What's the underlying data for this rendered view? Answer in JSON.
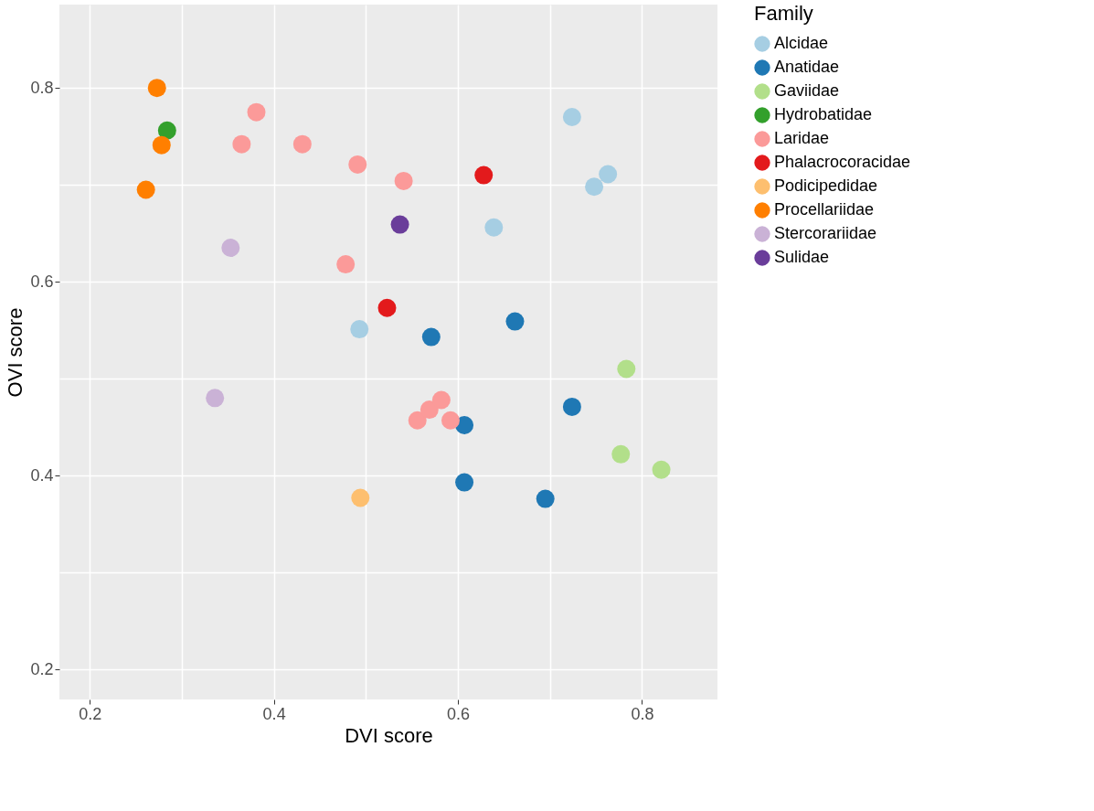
{
  "chart_data": {
    "type": "scatter",
    "xlabel": "DVI score",
    "ylabel": "OVI score",
    "legend_title": "Family",
    "legend": "right",
    "grid": true,
    "marker": "circle",
    "xlim": [
      0.167,
      0.882
    ],
    "ylim": [
      0.169,
      0.886
    ],
    "xticks": [
      0.2,
      {
        "value": 0.3,
        "label": null
      },
      0.4,
      {
        "value": 0.5,
        "label": null
      },
      0.6,
      {
        "value": 0.7,
        "label": null
      },
      0.8
    ],
    "yticks": [
      0.2,
      {
        "value": 0.3,
        "label": null
      },
      0.4,
      {
        "value": 0.5,
        "label": null
      },
      0.6,
      {
        "value": 0.7,
        "label": null
      },
      0.8
    ],
    "series": [
      {
        "name": "Alcidae",
        "color": "#a6cee3",
        "x": [
          0.724,
          0.763,
          0.748,
          0.639,
          0.493
        ],
        "values": [
          0.77,
          0.711,
          0.698,
          0.656,
          0.551
        ]
      },
      {
        "name": "Anatidae",
        "color": "#1f78b4",
        "x": [
          0.662,
          0.571,
          0.607,
          0.724,
          0.607,
          0.695
        ],
        "values": [
          0.559,
          0.543,
          0.452,
          0.471,
          0.393,
          0.376
        ]
      },
      {
        "name": "Gaviidae",
        "color": "#b2df8a",
        "x": [
          0.783,
          0.777,
          0.821
        ],
        "values": [
          0.51,
          0.422,
          0.406
        ]
      },
      {
        "name": "Hydrobatidae",
        "color": "#33a02c",
        "x": [
          0.284
        ],
        "values": [
          0.756
        ]
      },
      {
        "name": "Laridae",
        "color": "#fb9a99",
        "x": [
          0.381,
          0.365,
          0.431,
          0.491,
          0.541,
          0.478,
          0.556,
          0.569,
          0.582,
          0.592
        ],
        "values": [
          0.775,
          0.742,
          0.742,
          0.721,
          0.704,
          0.618,
          0.457,
          0.468,
          0.478,
          0.457
        ]
      },
      {
        "name": "Phalacrocoracidae",
        "color": "#e31a1c",
        "x": [
          0.628,
          0.523
        ],
        "values": [
          0.71,
          0.573
        ]
      },
      {
        "name": "Podicipedidae",
        "color": "#fdbf6f",
        "x": [
          0.494
        ],
        "values": [
          0.377
        ]
      },
      {
        "name": "Procellariidae",
        "color": "#ff7f00",
        "x": [
          0.273,
          0.278,
          0.261
        ],
        "values": [
          0.8,
          0.741,
          0.695
        ]
      },
      {
        "name": "Stercorariidae",
        "color": "#cab2d6",
        "x": [
          0.353,
          0.336
        ],
        "values": [
          0.635,
          0.48
        ]
      },
      {
        "name": "Sulidae",
        "color": "#6a3d9a",
        "x": [
          0.537
        ],
        "values": [
          0.659
        ]
      }
    ]
  }
}
